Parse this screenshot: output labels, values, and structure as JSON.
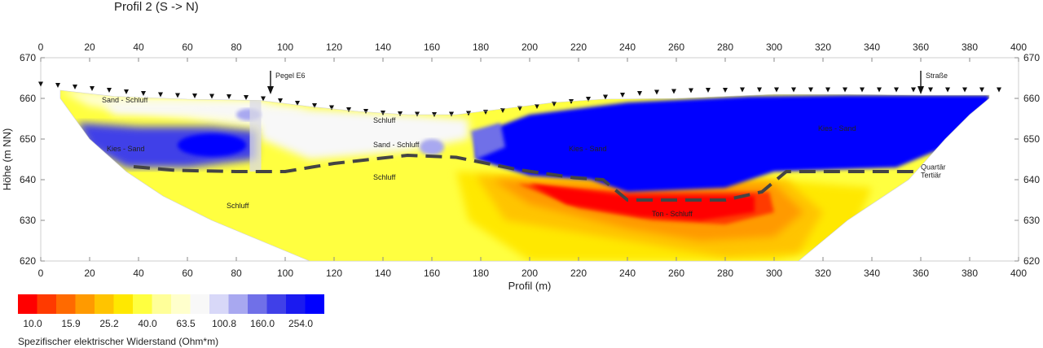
{
  "title": "Profil 2 (S -> N)",
  "chart_data": {
    "type": "heatmap",
    "title": "Profil 2 (S -> N)",
    "xlabel": "Profil (m)",
    "ylabel": "Höhe (m NN)",
    "xlim": [
      0,
      400
    ],
    "ylim": [
      620,
      670
    ],
    "x_ticks": [
      "0",
      "20",
      "40",
      "60",
      "80",
      "100",
      "120",
      "140",
      "160",
      "180",
      "200",
      "220",
      "240",
      "260",
      "280",
      "300",
      "320",
      "340",
      "360",
      "380",
      "400"
    ],
    "y_ticks": [
      "620",
      "630",
      "640",
      "650",
      "660",
      "670"
    ],
    "grid": false,
    "colorbar": {
      "title": "Spezifischer elektrischer Widerstand (Ohm*m)",
      "tick_labels": [
        "10.0",
        "15.9",
        "25.2",
        "40.0",
        "63.5",
        "100.8",
        "160.0",
        "254.0"
      ],
      "colors": [
        "#ff0000",
        "#ff3a00",
        "#ff6a00",
        "#ff9a00",
        "#ffc400",
        "#ffe800",
        "#ffff40",
        "#ffff99",
        "#ffffcc",
        "#f8f8f8",
        "#d8d8f8",
        "#a8a8f0",
        "#7070e8",
        "#4040e8",
        "#1a1af0",
        "#0000ff"
      ]
    },
    "terrain_markers_x": [
      0,
      7,
      14,
      21,
      28,
      35,
      42,
      49,
      56,
      63,
      70,
      77,
      84,
      91,
      98,
      105,
      112,
      119,
      126,
      133,
      140,
      147,
      154,
      161,
      168,
      175,
      182,
      189,
      196,
      203,
      210,
      217,
      224,
      231,
      238,
      245,
      252,
      259,
      266,
      273,
      280,
      287,
      294,
      301,
      308,
      315,
      322,
      329,
      336,
      343,
      350,
      357,
      364,
      371,
      378,
      385,
      392
    ],
    "terrain_markers_y": [
      663.5,
      663.2,
      662.8,
      662.4,
      662.0,
      661.6,
      661.2,
      660.9,
      660.7,
      660.6,
      660.5,
      660.4,
      660.2,
      659.9,
      659.4,
      658.8,
      658.2,
      657.7,
      657.2,
      656.8,
      656.4,
      656.2,
      656.1,
      656.0,
      656.1,
      656.3,
      656.6,
      657.0,
      657.5,
      658.0,
      658.6,
      659.2,
      659.8,
      660.3,
      660.8,
      661.2,
      661.5,
      661.7,
      661.9,
      662.0,
      662.0,
      662.1,
      662.1,
      662.1,
      662.1,
      662.1,
      662.1,
      662.1,
      662.1,
      662.1,
      662.1,
      662.1,
      662.1,
      662.1,
      662.1,
      662.1,
      662.1
    ],
    "boundary_line": {
      "name": "Quartär / Tertiär",
      "x": [
        38,
        55,
        80,
        100,
        120,
        150,
        170,
        195,
        218,
        230,
        240,
        280,
        295,
        305,
        340,
        360
      ],
      "y": [
        643.2,
        642.3,
        642.0,
        642.0,
        644.0,
        646.0,
        645.5,
        642.5,
        640.5,
        640.0,
        635.0,
        635.0,
        637.0,
        642.0,
        642.0,
        642.0
      ]
    },
    "annotations": [
      {
        "text": "Sand - Schluff",
        "x": 25,
        "y": 659
      },
      {
        "text": "Schluff",
        "x": 136,
        "y": 654
      },
      {
        "text": "Sand - Schluff",
        "x": 136,
        "y": 648
      },
      {
        "text": "Kies - Sand",
        "x": 27,
        "y": 647
      },
      {
        "text": "Kies - Sand",
        "x": 216,
        "y": 647
      },
      {
        "text": "Kies - Sand",
        "x": 318,
        "y": 652
      },
      {
        "text": "Schluff",
        "x": 136,
        "y": 640
      },
      {
        "text": "Schluff",
        "x": 76,
        "y": 633
      },
      {
        "text": "Ton - Schluff",
        "x": 250,
        "y": 631
      },
      {
        "text": "Quartär",
        "x": 360,
        "y": 642.5
      },
      {
        "text": "Tertiär",
        "x": 360,
        "y": 640.5
      }
    ],
    "markers": [
      {
        "label": "Pegel E6",
        "x": 94
      },
      {
        "label": "Straße",
        "x": 360
      }
    ]
  }
}
